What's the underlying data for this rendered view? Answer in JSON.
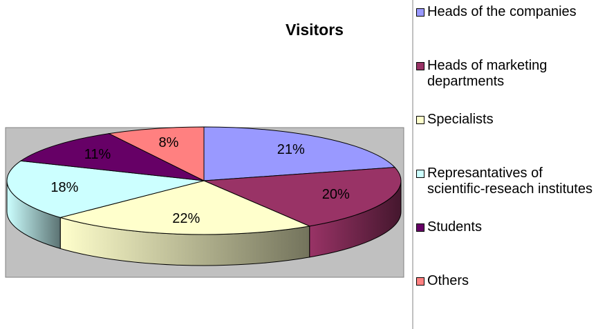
{
  "chart_data": {
    "type": "pie3d",
    "title": "Visitors",
    "categories": [
      "Heads of the companies",
      "Heads of marketing departments",
      "Specialists",
      "Represantatives of scientific-reseach institutes",
      "Students",
      "Others"
    ],
    "values": [
      21,
      20,
      22,
      18,
      11,
      8
    ],
    "value_labels": [
      "21%",
      "20%",
      "22%",
      "18%",
      "11%",
      "8%"
    ],
    "colors": [
      "#9999ff",
      "#993366",
      "#ffffcc",
      "#ccffff",
      "#660066",
      "#ff8080"
    ],
    "legend": "right"
  }
}
